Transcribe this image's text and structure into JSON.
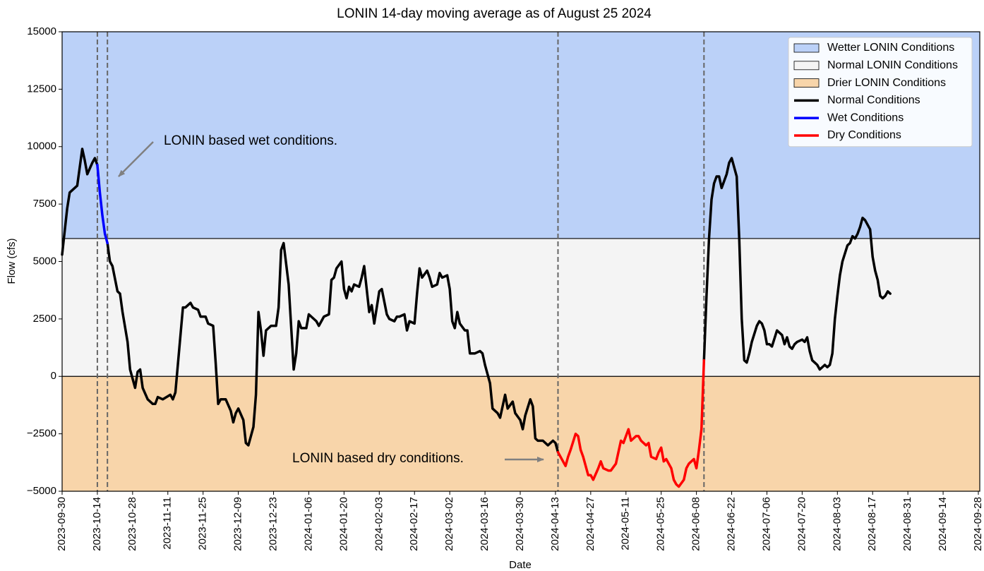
{
  "chart_data": {
    "type": "line",
    "title": "LONIN 14-day moving average as of August 25 2024",
    "xlabel": "Date",
    "ylabel": "Flow (cfs)",
    "xlim": [
      "2023-09-30",
      "2024-09-28"
    ],
    "xticks": [
      "2023-09-30",
      "2023-10-14",
      "2023-10-28",
      "2023-11-11",
      "2023-11-25",
      "2023-12-09",
      "2023-12-23",
      "2024-01-06",
      "2024-01-20",
      "2024-02-03",
      "2024-02-17",
      "2024-03-02",
      "2024-03-16",
      "2024-03-30",
      "2024-04-13",
      "2024-04-27",
      "2024-05-11",
      "2024-05-25",
      "2024-06-08",
      "2024-06-22",
      "2024-07-06",
      "2024-07-20",
      "2024-08-03",
      "2024-08-17",
      "2024-08-31",
      "2024-09-14",
      "2024-09-28"
    ],
    "ylim": [
      -5000,
      15000
    ],
    "yticks": [
      {
        "value": -5000,
        "label": "−5000"
      },
      {
        "value": -2500,
        "label": "−2500"
      },
      0,
      2500,
      5000,
      7500,
      10000,
      12500,
      15000
    ],
    "legend": "upper right",
    "bands": [
      {
        "name": "Wetter LONIN Conditions",
        "color": "#bbd1f8",
        "from": 6000,
        "to": 15000
      },
      {
        "name": "Normal LONIN Conditions",
        "color": "#f4f4f4",
        "from": 0,
        "to": 6000
      },
      {
        "name": "Drier LONIN Conditions",
        "color": "#f8d5aa",
        "from": -5000,
        "to": 0
      }
    ],
    "vlines": [
      "2023-10-14",
      "2023-10-18",
      "2024-04-14",
      "2024-06-11"
    ],
    "annotations": [
      {
        "text": "LONIN based wet conditions."
      },
      {
        "text": "LONIN based dry conditions."
      }
    ],
    "series": [
      {
        "name": "Normal Conditions",
        "color": "#000000",
        "x": [
          "2023-09-30",
          "2023-10-02",
          "2023-10-03",
          "2023-10-06",
          "2023-10-08",
          "2023-10-09",
          "2023-10-10",
          "2023-10-12",
          "2023-10-13",
          "2023-10-14",
          "2023-10-16",
          "2023-10-18",
          "2023-10-19",
          "2023-10-20",
          "2023-10-22",
          "2023-10-23",
          "2023-10-24",
          "2023-10-26",
          "2023-10-27",
          "2023-10-29",
          "2023-10-30",
          "2023-10-31",
          "2023-11-01",
          "2023-11-03",
          "2023-11-05",
          "2023-11-06",
          "2023-11-07",
          "2023-11-09",
          "2023-11-12",
          "2023-11-13",
          "2023-11-14",
          "2023-11-17",
          "2023-11-18",
          "2023-11-20",
          "2023-11-21",
          "2023-11-23",
          "2023-11-24",
          "2023-11-26",
          "2023-11-27",
          "2023-11-29",
          "2023-11-30",
          "2023-12-01",
          "2023-12-02",
          "2023-12-04",
          "2023-12-06",
          "2023-12-07",
          "2023-12-08",
          "2023-12-09",
          "2023-12-11",
          "2023-12-12",
          "2023-12-13",
          "2023-12-15",
          "2023-12-16",
          "2023-12-17",
          "2023-12-18",
          "2023-12-19",
          "2023-12-20",
          "2023-12-22",
          "2023-12-24",
          "2023-12-25",
          "2023-12-26",
          "2023-12-27",
          "2023-12-29",
          "2023-12-31",
          "2024-01-01",
          "2024-01-02",
          "2024-01-03",
          "2024-01-05",
          "2024-01-06",
          "2024-01-07",
          "2024-01-09",
          "2024-01-10",
          "2024-01-12",
          "2024-01-14",
          "2024-01-15",
          "2024-01-16",
          "2024-01-17",
          "2024-01-19",
          "2024-01-20",
          "2024-01-21",
          "2024-01-22",
          "2024-01-23",
          "2024-01-24",
          "2024-01-26",
          "2024-01-27",
          "2024-01-28",
          "2024-01-29",
          "2024-01-30",
          "2024-01-31",
          "2024-02-01",
          "2024-02-02",
          "2024-02-03",
          "2024-02-04",
          "2024-02-06",
          "2024-02-07",
          "2024-02-09",
          "2024-02-10",
          "2024-02-11",
          "2024-02-13",
          "2024-02-14",
          "2024-02-15",
          "2024-02-17",
          "2024-02-18",
          "2024-02-19",
          "2024-02-20",
          "2024-02-22",
          "2024-02-23",
          "2024-02-24",
          "2024-02-26",
          "2024-02-27",
          "2024-02-28",
          "2024-03-01",
          "2024-03-02",
          "2024-03-03",
          "2024-03-04",
          "2024-03-05",
          "2024-03-06",
          "2024-03-08",
          "2024-03-09",
          "2024-03-10",
          "2024-03-12",
          "2024-03-14",
          "2024-03-15",
          "2024-03-16",
          "2024-03-18",
          "2024-03-19",
          "2024-03-21",
          "2024-03-22",
          "2024-03-23",
          "2024-03-24",
          "2024-03-25",
          "2024-03-27",
          "2024-03-28",
          "2024-03-30",
          "2024-03-31",
          "2024-04-01",
          "2024-04-03",
          "2024-04-04",
          "2024-04-05",
          "2024-04-06",
          "2024-04-08",
          "2024-04-10",
          "2024-04-12",
          "2024-04-13",
          "2024-04-14",
          "2024-05-15",
          "2024-06-11",
          "2024-06-12",
          "2024-06-13",
          "2024-06-14",
          "2024-06-15",
          "2024-06-16",
          "2024-06-17",
          "2024-06-18",
          "2024-06-20",
          "2024-06-21",
          "2024-06-22",
          "2024-06-23",
          "2024-06-24",
          "2024-06-25",
          "2024-06-26",
          "2024-06-27",
          "2024-06-28",
          "2024-06-29",
          "2024-06-30",
          "2024-07-02",
          "2024-07-03",
          "2024-07-04",
          "2024-07-05",
          "2024-07-06",
          "2024-07-07",
          "2024-07-08",
          "2024-07-10",
          "2024-07-11",
          "2024-07-12",
          "2024-07-13",
          "2024-07-14",
          "2024-07-15",
          "2024-07-16",
          "2024-07-17",
          "2024-07-18",
          "2024-07-20",
          "2024-07-21",
          "2024-07-22",
          "2024-07-23",
          "2024-07-24",
          "2024-07-25",
          "2024-07-26",
          "2024-07-27",
          "2024-07-29",
          "2024-07-30",
          "2024-07-31",
          "2024-08-01",
          "2024-08-02",
          "2024-08-03",
          "2024-08-04",
          "2024-08-05",
          "2024-08-07",
          "2024-08-08",
          "2024-08-09",
          "2024-08-10",
          "2024-08-11",
          "2024-08-12",
          "2024-08-13",
          "2024-08-14",
          "2024-08-16",
          "2024-08-17",
          "2024-08-18",
          "2024-08-19",
          "2024-08-20",
          "2024-08-21",
          "2024-08-22",
          "2024-08-23",
          "2024-08-24"
        ],
        "values": [
          5300,
          7300,
          8000,
          8300,
          9900,
          9400,
          8800,
          9300,
          9500,
          9200,
          null,
          5800,
          5000,
          4800,
          3700,
          3600,
          2800,
          1500,
          300,
          -500,
          200,
          300,
          -500,
          -1000,
          -1200,
          -1200,
          -900,
          -1000,
          -800,
          -1000,
          -700,
          3000,
          3000,
          3200,
          3000,
          2900,
          2600,
          2600,
          2300,
          2200,
          600,
          -1200,
          -1000,
          -1000,
          -1500,
          -2000,
          -1600,
          -1400,
          -1900,
          -2900,
          -3000,
          -2200,
          -800,
          2800,
          2000,
          900,
          2000,
          2200,
          2200,
          3000,
          5500,
          5800,
          4000,
          300,
          1000,
          2400,
          2100,
          2100,
          2700,
          2600,
          2400,
          2200,
          2600,
          2700,
          4200,
          4300,
          4700,
          5000,
          3800,
          3400,
          3900,
          3700,
          4000,
          3900,
          4300,
          4800,
          3800,
          2800,
          3100,
          2300,
          3000,
          3700,
          3800,
          2700,
          2500,
          2400,
          2600,
          2600,
          2700,
          2000,
          2400,
          2300,
          3600,
          4700,
          4300,
          4600,
          4300,
          3900,
          4000,
          4500,
          4300,
          4400,
          3800,
          2400,
          2100,
          2800,
          2300,
          2000,
          2000,
          1000,
          1000,
          1100,
          1000,
          500,
          -300,
          -1400,
          -1600,
          -1800,
          -1300,
          -800,
          -1400,
          -1100,
          -1600,
          -1900,
          -2300,
          -1700,
          -1000,
          -1300,
          -2700,
          -2800,
          -2800,
          -3000,
          -2800,
          -2900,
          -3300,
          null,
          700,
          3500,
          6000,
          7700,
          8400,
          8700,
          8700,
          8200,
          8800,
          9300,
          9500,
          9100,
          8700,
          6000,
          2500,
          700,
          600,
          1000,
          1500,
          2200,
          2400,
          2300,
          2000,
          1400,
          1400,
          1300,
          2000,
          1900,
          1800,
          1400,
          1700,
          1300,
          1200,
          1400,
          1500,
          1600,
          1500,
          1700,
          1100,
          700,
          600,
          500,
          300,
          500,
          400,
          500,
          1000,
          2500,
          3500,
          4400,
          5000,
          5700,
          5800,
          6100,
          6000,
          6200,
          6500,
          6900,
          6800,
          6400,
          5200,
          4600,
          4200,
          3500,
          3400,
          3500,
          3700,
          3600
        ]
      },
      {
        "name": "Wet Conditions",
        "color": "#0000ff",
        "x": [
          "2023-10-14",
          "2023-10-15",
          "2023-10-16",
          "2023-10-17",
          "2023-10-18"
        ],
        "values": [
          9200,
          8000,
          7000,
          6200,
          5800
        ]
      },
      {
        "name": "Dry Conditions",
        "color": "#ff0000",
        "x": [
          "2024-04-14",
          "2024-04-15",
          "2024-04-17",
          "2024-04-18",
          "2024-04-19",
          "2024-04-21",
          "2024-04-22",
          "2024-04-23",
          "2024-04-24",
          "2024-04-26",
          "2024-04-27",
          "2024-04-28",
          "2024-04-30",
          "2024-05-01",
          "2024-05-02",
          "2024-05-04",
          "2024-05-05",
          "2024-05-07",
          "2024-05-08",
          "2024-05-09",
          "2024-05-10",
          "2024-05-12",
          "2024-05-13",
          "2024-05-15",
          "2024-05-16",
          "2024-05-17",
          "2024-05-19",
          "2024-05-20",
          "2024-05-21",
          "2024-05-23",
          "2024-05-24",
          "2024-05-25",
          "2024-05-26",
          "2024-05-27",
          "2024-05-29",
          "2024-05-30",
          "2024-05-31",
          "2024-06-01",
          "2024-06-03",
          "2024-06-04",
          "2024-06-05",
          "2024-06-07",
          "2024-06-08",
          "2024-06-09",
          "2024-06-10",
          "2024-06-11"
        ],
        "values": [
          -3300,
          -3500,
          -3900,
          -3500,
          -3200,
          -2500,
          -2600,
          -3200,
          -3500,
          -4300,
          -4300,
          -4500,
          -4000,
          -3700,
          -4000,
          -4100,
          -4100,
          -3800,
          -3300,
          -2800,
          -2900,
          -2300,
          -2800,
          -2600,
          -2600,
          -2800,
          -3000,
          -2900,
          -3500,
          -3600,
          -3300,
          -3100,
          -3700,
          -3600,
          -4000,
          -4500,
          -4700,
          -4800,
          -4500,
          -4000,
          -3800,
          -3600,
          -4000,
          -3200,
          -2300,
          700
        ]
      }
    ]
  }
}
